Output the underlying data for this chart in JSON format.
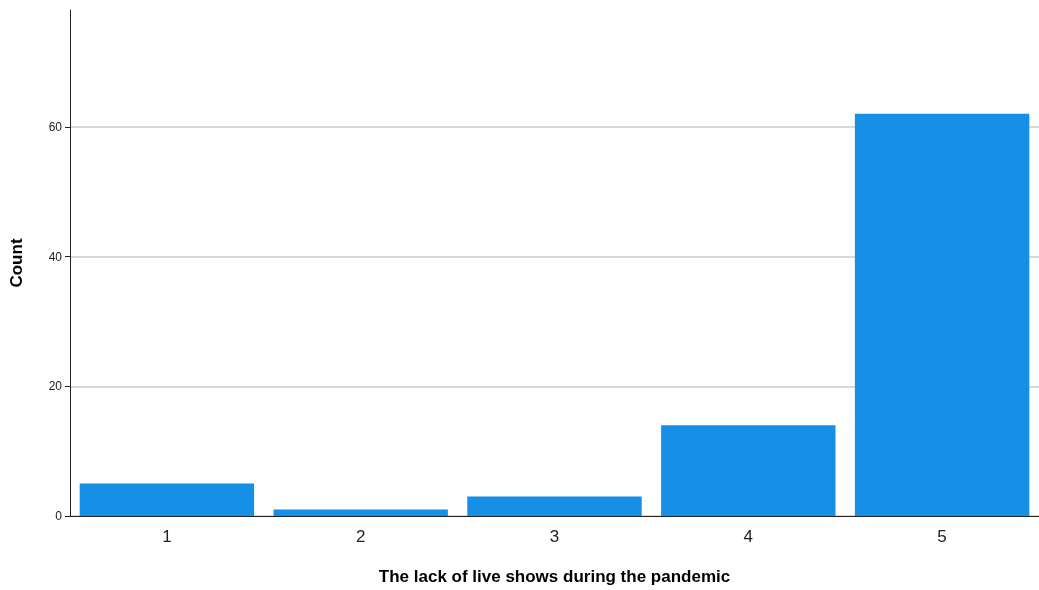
{
  "chart_data": {
    "type": "bar",
    "xlabel": "The lack of live shows during the pandemic",
    "ylabel": "Count",
    "categories": [
      "1",
      "2",
      "3",
      "4",
      "5"
    ],
    "values": [
      5,
      1,
      3,
      14,
      62
    ],
    "color": "#1590e6",
    "ylim": [
      0,
      78
    ],
    "yticks": [
      0,
      20,
      40,
      60
    ],
    "grid": "y"
  }
}
